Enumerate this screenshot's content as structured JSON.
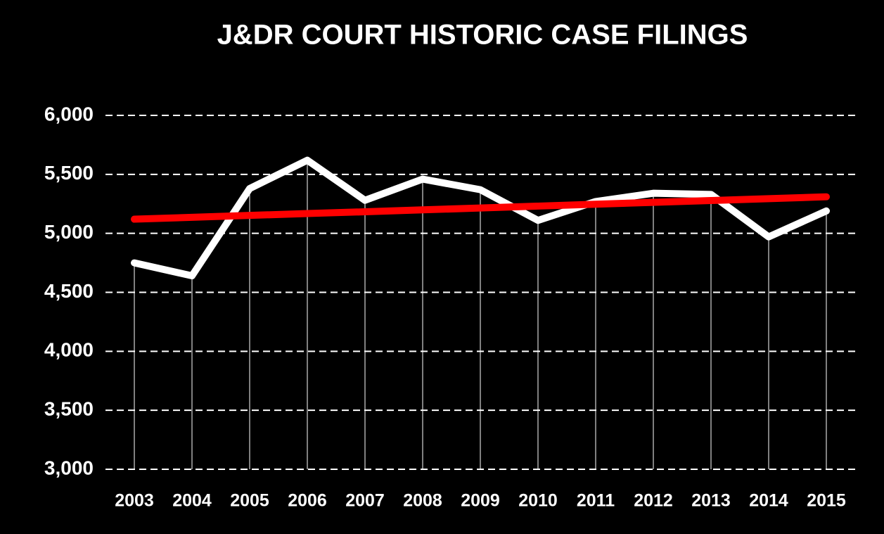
{
  "chart_data": {
    "type": "line",
    "title": "J&DR COURT HISTORIC CASE FILINGS",
    "categories": [
      "2003",
      "2004",
      "2005",
      "2006",
      "2007",
      "2008",
      "2009",
      "2010",
      "2011",
      "2012",
      "2013",
      "2014",
      "2015"
    ],
    "series": [
      {
        "color": "#ffffff",
        "values": [
          4750,
          4640,
          5380,
          5620,
          5280,
          5460,
          5370,
          5110,
          5270,
          5340,
          5330,
          4970,
          5190
        ]
      },
      {
        "color": "#ff0000",
        "values": [
          5120,
          5136,
          5152,
          5168,
          5183,
          5199,
          5215,
          5231,
          5247,
          5263,
          5278,
          5294,
          5310
        ]
      }
    ],
    "ylim": [
      3000,
      6000
    ],
    "yticks": [
      {
        "value": 3000,
        "label": "3,000"
      },
      {
        "value": 3500,
        "label": "3,500"
      },
      {
        "value": 4000,
        "label": "4,000"
      },
      {
        "value": 4500,
        "label": "4,500"
      },
      {
        "value": 5000,
        "label": "5,000"
      },
      {
        "value": 5500,
        "label": "5,500"
      },
      {
        "value": 6000,
        "label": "6,000"
      }
    ],
    "grid": true
  }
}
